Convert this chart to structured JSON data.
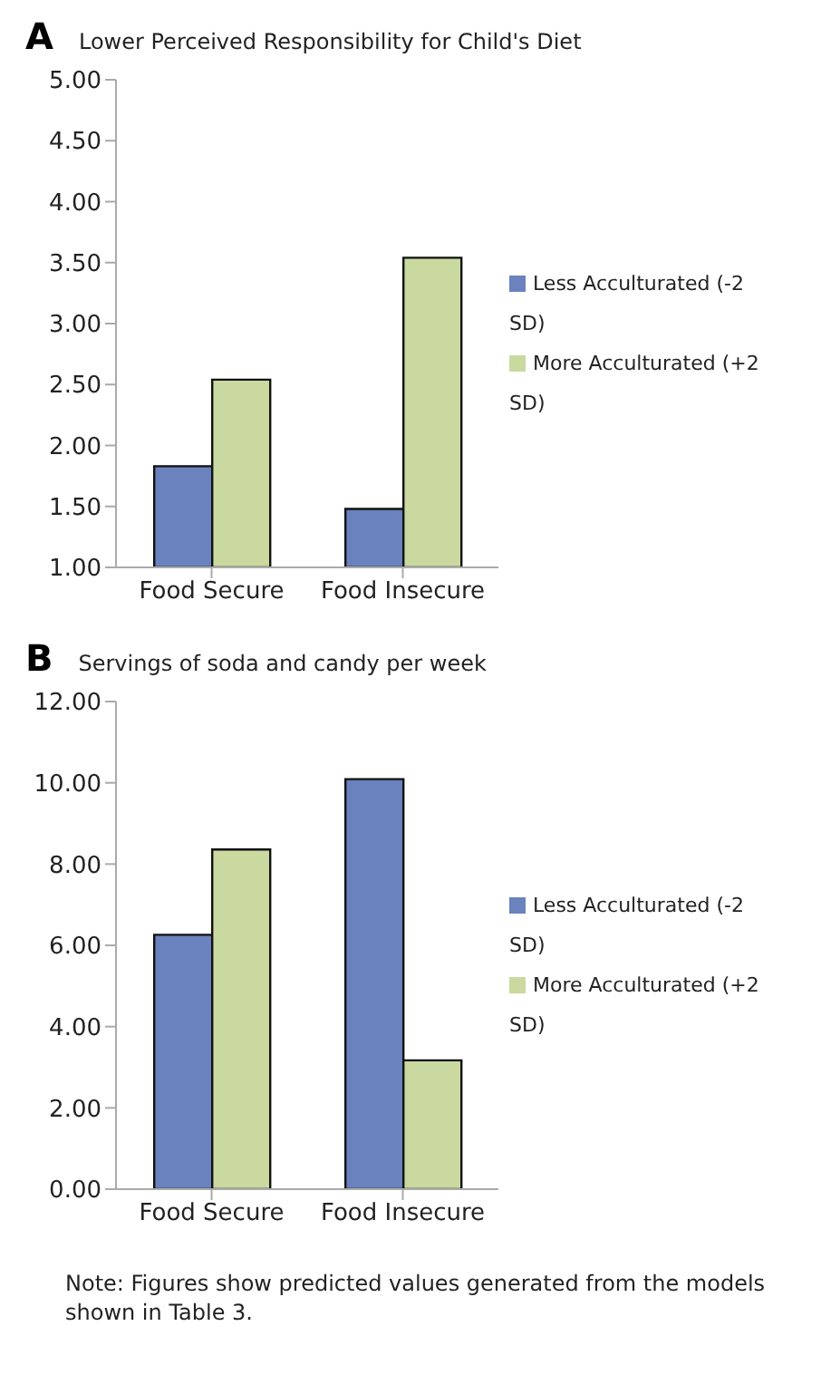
{
  "chart_data": [
    {
      "type": "bar",
      "title": "A",
      "subtitle": "Lower Perceived Responsibility for Child's Diet",
      "categories": [
        "Food Secure",
        "Food Insecure"
      ],
      "series": [
        {
          "name": "Less Acculturated (-2 SD)",
          "color": "#6a82bd",
          "values": [
            1.83,
            1.48
          ]
        },
        {
          "name": "More Acculturated (+2 SD)",
          "color": "#c9d9a0",
          "values": [
            2.54,
            3.54
          ]
        }
      ],
      "ylim": [
        1,
        5
      ],
      "yticks": [
        {
          "value": 1,
          "label": "1.00"
        },
        {
          "value": 1.5,
          "label": "1.50"
        },
        {
          "value": 2,
          "label": "2.00"
        },
        {
          "value": 2.5,
          "label": "2.50"
        },
        {
          "value": 3,
          "label": "3.00"
        },
        {
          "value": 3.5,
          "label": "3.50"
        },
        {
          "value": 4,
          "label": "4.00"
        },
        {
          "value": 4.5,
          "label": "4.50"
        },
        {
          "value": 5,
          "label": "5.00"
        }
      ],
      "grid": false,
      "legend": "right"
    },
    {
      "type": "bar",
      "title": "B",
      "subtitle": "Servings of soda and candy per week",
      "categories": [
        "Food Secure",
        "Food Insecure"
      ],
      "series": [
        {
          "name": "Less Acculturated (-2 SD)",
          "color": "#6a82bd",
          "values": [
            6.26,
            10.09
          ]
        },
        {
          "name": "More Acculturated (+2 SD)",
          "color": "#c9d9a0",
          "values": [
            8.36,
            3.17
          ]
        }
      ],
      "ylim": [
        0,
        12
      ],
      "yticks": [
        {
          "value": 0,
          "label": "0.00"
        },
        {
          "value": 2,
          "label": "2.00"
        },
        {
          "value": 4,
          "label": "4.00"
        },
        {
          "value": 6,
          "label": "6.00"
        },
        {
          "value": 8,
          "label": "8.00"
        },
        {
          "value": 10,
          "label": "10.00"
        },
        {
          "value": 12,
          "label": "12.00"
        }
      ],
      "grid": false,
      "legend": "right",
      "annotations": [
        "Note:  Figures show predicted values generated from the models shown in Table 3."
      ]
    }
  ]
}
